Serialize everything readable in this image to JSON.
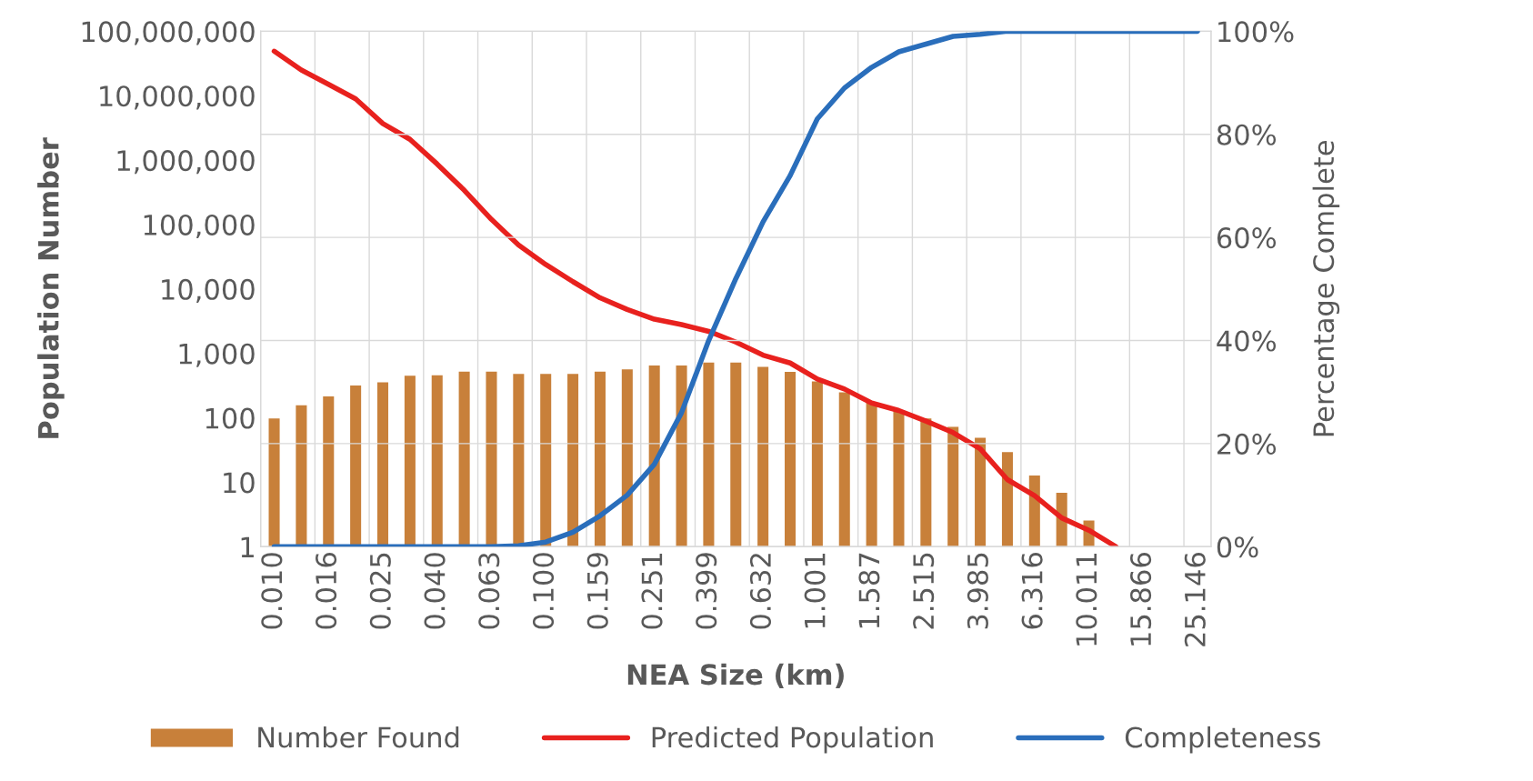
{
  "chart_data": {
    "type": "bar",
    "xlabel": "NEA Size (km)",
    "ylabel": "Population Number",
    "y2label": "Percentage Complete",
    "categories": [
      "0.010",
      null,
      "0.016",
      null,
      "0.025",
      null,
      "0.040",
      null,
      "0.063",
      null,
      "0.100",
      null,
      "0.159",
      null,
      "0.251",
      null,
      "0.399",
      null,
      "0.632",
      null,
      "1.001",
      null,
      "1.587",
      null,
      "2.515",
      null,
      "3.985",
      null,
      "6.316",
      null,
      "10.011",
      null,
      "15.866",
      null,
      "25.146"
    ],
    "log": "y",
    "ylim": [
      1,
      100000000
    ],
    "yticks": [
      1,
      10,
      {
        "value": 100,
        "label": "100"
      },
      {
        "value": 1000,
        "label": "1,000"
      },
      {
        "value": 10000,
        "label": "10,000"
      },
      {
        "value": 100000,
        "label": "100,000"
      },
      {
        "value": 1000000,
        "label": "1,000,000"
      },
      {
        "value": 10000000,
        "label": "10,000,000"
      },
      {
        "value": 100000000,
        "label": "100,000,000"
      }
    ],
    "y2lim": [
      0,
      100
    ],
    "y2ticks": [
      {
        "value": 0,
        "label": "0%"
      },
      {
        "value": 20,
        "label": "20%"
      },
      {
        "value": 40,
        "label": "40%"
      },
      {
        "value": 60,
        "label": "60%"
      },
      {
        "value": 80,
        "label": "80%"
      },
      {
        "value": 100,
        "label": "100%"
      }
    ],
    "grid": true,
    "legend": "bottom",
    "series": [
      {
        "name": "Number Found",
        "color": "#c8803a",
        "values": [
          100,
          160,
          220,
          325,
          365,
          460,
          470,
          535,
          535,
          490,
          490,
          490,
          535,
          580,
          665,
          665,
          740,
          740,
          630,
          530,
          375,
          255,
          175,
          130,
          100,
          74,
          50,
          30,
          13,
          7,
          2.6,
          null,
          null,
          null,
          null
        ]
      },
      {
        "name": "Predicted Population",
        "type": "line",
        "color": "#e8211e",
        "values": [
          49000000,
          25000000,
          15000000,
          8900000,
          3700000,
          2100000,
          870000,
          340000,
          120000,
          48000,
          24000,
          13000,
          7300,
          4800,
          3400,
          2800,
          2200,
          1500,
          940,
          710,
          400,
          280,
          170,
          130,
          89,
          59,
          33,
          11,
          6.2,
          2.8,
          1.8,
          1,
          null,
          null,
          null
        ]
      },
      {
        "name": "Completeness",
        "type": "line",
        "axis": "y2",
        "color": "#2a6ebb",
        "values": [
          0,
          0,
          0,
          0,
          0,
          0,
          0,
          0,
          0,
          0.2,
          0.9,
          2.8,
          6,
          10,
          16,
          26,
          40,
          52,
          63,
          72,
          83,
          89,
          93,
          96,
          97.5,
          99,
          99.4,
          100,
          100,
          100,
          100,
          100,
          100,
          100,
          100
        ]
      }
    ]
  }
}
